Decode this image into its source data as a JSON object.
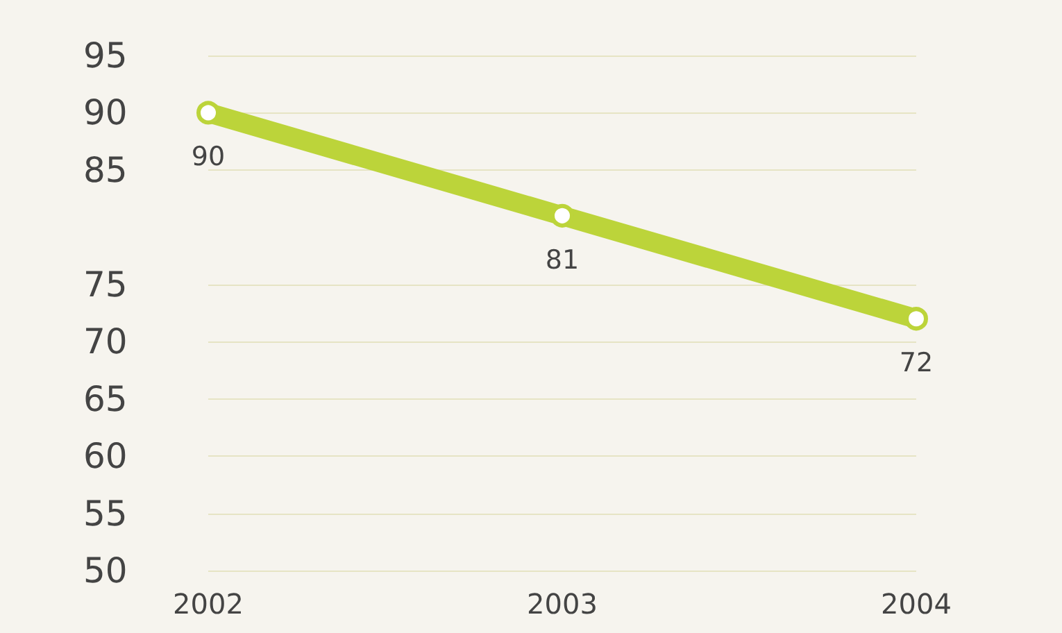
{
  "chart_data": {
    "type": "line",
    "categories": [
      "2002",
      "2003",
      "2004"
    ],
    "series": [
      {
        "color": "#bcd43a",
        "values": [
          90,
          81,
          72
        ]
      }
    ],
    "ylim": [
      50,
      95
    ],
    "yticks": [
      95,
      90,
      85,
      75,
      70,
      65,
      60,
      55,
      50
    ],
    "grid": "y",
    "marker": "circle",
    "line_style": "solid",
    "data_labels": true
  }
}
